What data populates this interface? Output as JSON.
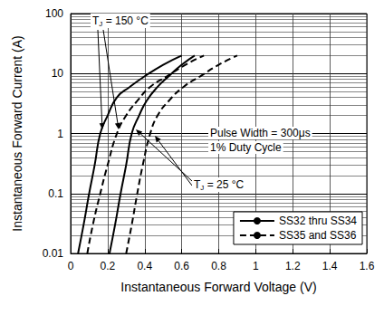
{
  "chart_data": {
    "type": "line",
    "xlabel": "Instantaneous Forward Voltage (V)",
    "ylabel": "Instantaneous Forward Current (A)",
    "xlim": [
      0,
      1.6
    ],
    "xticks": [
      0,
      0.2,
      0.4,
      0.6,
      0.8,
      1.0,
      1.2,
      1.4,
      1.6
    ],
    "ylim": [
      0.01,
      100
    ],
    "yticks": [
      0.01,
      0.1,
      1,
      10,
      100
    ],
    "log": "y",
    "grid": true,
    "legend": "lower right",
    "annotations": [
      "TJ = 150 °C",
      "TJ = 25 °C",
      "Pulse Width = 300μs",
      "1% Duty Cycle"
    ],
    "series": [
      {
        "name": "SS32 thru SS34",
        "color": "#000000",
        "line_style": "solid",
        "x": [
          0.04,
          0.07,
          0.1,
          0.13,
          0.16,
          0.2,
          0.25,
          0.32,
          0.4,
          0.5,
          0.6
        ],
        "values": [
          0.01,
          0.03,
          0.1,
          0.3,
          1,
          2,
          4,
          6,
          9,
          14,
          20
        ]
      },
      {
        "name": "SS32 thru SS34",
        "color": "#000000",
        "line_style": "solid",
        "x": [
          0.21,
          0.24,
          0.27,
          0.3,
          0.33,
          0.37,
          0.41,
          0.47,
          0.53,
          0.6,
          0.67
        ],
        "values": [
          0.01,
          0.03,
          0.1,
          0.3,
          1,
          2,
          3.5,
          6,
          9,
          14,
          20
        ]
      },
      {
        "name": "SS35 and SS36",
        "color": "#000000",
        "line_style": "dashed",
        "x": [
          0.09,
          0.12,
          0.16,
          0.2,
          0.25,
          0.3,
          0.36,
          0.43,
          0.52,
          0.62,
          0.72
        ],
        "values": [
          0.01,
          0.03,
          0.1,
          0.3,
          1,
          2,
          3.5,
          6,
          9,
          14,
          20
        ]
      },
      {
        "name": "SS35 and SS36",
        "color": "#000000",
        "line_style": "dashed",
        "x": [
          0.3,
          0.33,
          0.36,
          0.39,
          0.43,
          0.47,
          0.53,
          0.61,
          0.7,
          0.8,
          0.9
        ],
        "values": [
          0.01,
          0.03,
          0.1,
          0.3,
          1,
          2,
          3.5,
          6,
          9,
          14,
          20
        ]
      }
    ]
  }
}
